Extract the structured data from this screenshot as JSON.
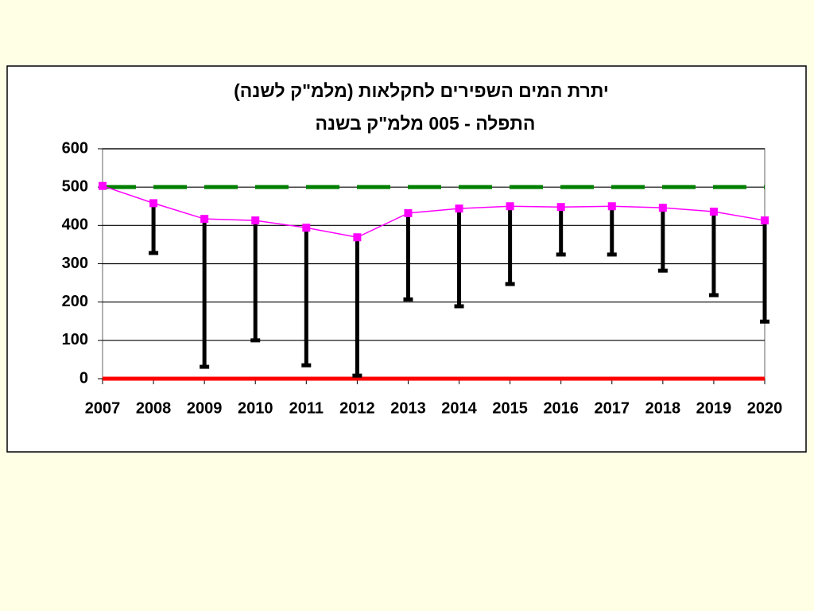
{
  "chart_data": {
    "type": "line",
    "title": "יתרת המים השפירים לחקלאות (מלמ\"ק לשנה)",
    "subtitle": "התפלה - 005 מלמ\"ק בשנה",
    "x": [
      2007,
      2008,
      2009,
      2010,
      2011,
      2012,
      2013,
      2014,
      2015,
      2016,
      2017,
      2018,
      2019,
      2020
    ],
    "xlim": [
      2007,
      2020
    ],
    "xticks": [
      2007,
      2008,
      2009,
      2010,
      2011,
      2012,
      2013,
      2014,
      2015,
      2016,
      2017,
      2018,
      2019,
      2020
    ],
    "ylim": [
      0,
      600
    ],
    "yticks": [
      0,
      100,
      200,
      300,
      400,
      500,
      600
    ],
    "grid": true,
    "series": [
      {
        "color": "#ff00ff",
        "error_color": "#000000",
        "values": [
          503,
          458,
          417,
          413,
          394,
          369,
          432,
          444,
          450,
          448,
          450,
          446,
          436,
          413
        ],
        "low": [
          null,
          328,
          31,
          100,
          35,
          8,
          207,
          189,
          247,
          324,
          324,
          282,
          218,
          149
        ]
      }
    ],
    "reference_lines": [
      {
        "value": 500,
        "color": "#008000",
        "style": "dashed"
      },
      {
        "value": 0,
        "color": "#ff0000",
        "style": "solid"
      }
    ]
  }
}
